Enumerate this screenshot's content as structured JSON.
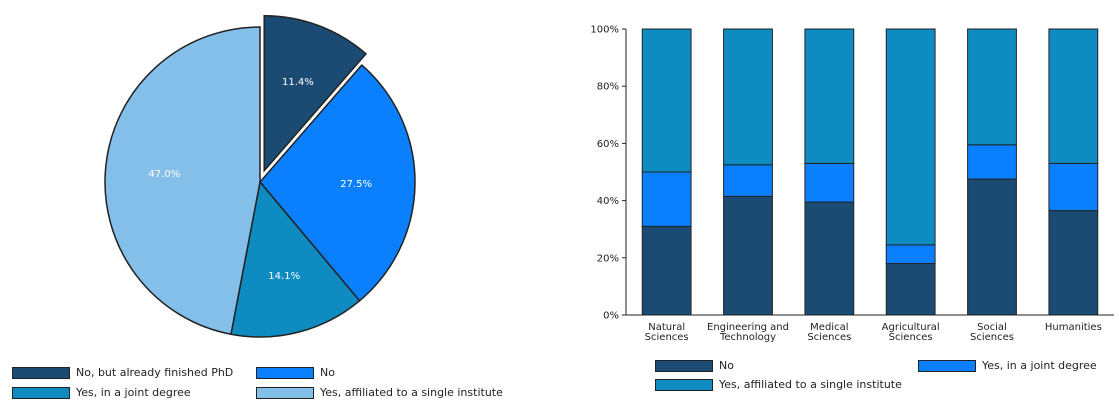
{
  "colors": {
    "no_finished_phd": "#1b4a72",
    "no": "#0a80ff",
    "joint_degree": "#0e8bc0",
    "single_institute": "#84bfe9",
    "outline": "#222222"
  },
  "chart_data": [
    {
      "type": "pie",
      "slices": [
        {
          "label": "No, but already finished PhD",
          "value": 11.4,
          "value_label": "11.4%",
          "color_key": "no_finished_phd",
          "exploded": true
        },
        {
          "label": "No",
          "value": 27.5,
          "value_label": "27.5%",
          "color_key": "no",
          "exploded": false
        },
        {
          "label": "Yes, in a joint degree",
          "value": 14.1,
          "value_label": "14.1%",
          "color_key": "joint_degree",
          "exploded": false
        },
        {
          "label": "Yes, affiliated to a single institute",
          "value": 47.0,
          "value_label": "47.0%",
          "color_key": "single_institute",
          "exploded": false
        }
      ],
      "legend_placement": "bottom"
    },
    {
      "type": "bar",
      "stacked": true,
      "categories": [
        [
          "Natural",
          "Sciences"
        ],
        [
          "Engineering and",
          "Technology"
        ],
        [
          "Medical",
          "Sciences"
        ],
        [
          "Agricultural",
          "Sciences"
        ],
        [
          "Social",
          "Sciences"
        ],
        [
          "Humanities"
        ]
      ],
      "series": [
        {
          "name": "No",
          "color_key": "no_finished_phd",
          "values": [
            31,
            41.5,
            39.5,
            18,
            47.5,
            36.5
          ]
        },
        {
          "name": "Yes, in a joint degree",
          "color_key": "no",
          "values": [
            19,
            11,
            13.5,
            6.5,
            12,
            16.5
          ]
        },
        {
          "name": "Yes, affiliated to a single institute",
          "color_key": "joint_degree",
          "values": [
            50,
            47.5,
            47,
            75.5,
            40.5,
            47
          ]
        }
      ],
      "yticks": [
        "0%",
        "20%",
        "40%",
        "60%",
        "80%",
        "100%"
      ],
      "ylim": [
        0,
        100
      ],
      "grid": false,
      "legend_placement": "bottom"
    }
  ]
}
